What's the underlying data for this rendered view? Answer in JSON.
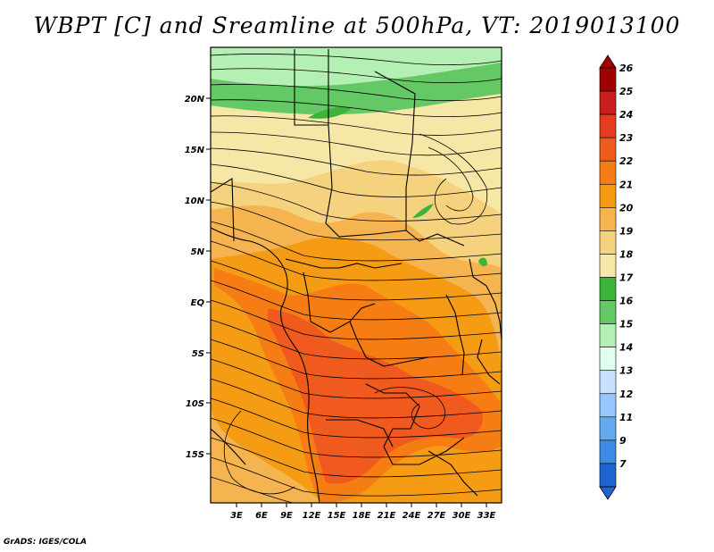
{
  "title": "WBPT [C] and Sreamline at 500hPa, VT: 2019013100",
  "footer": "GrADS: IGES/COLA",
  "lat_labels": [
    "20N",
    "15N",
    "10N",
    "5N",
    "EQ",
    "5S",
    "10S",
    "15S"
  ],
  "lon_labels": [
    "3E",
    "6E",
    "9E",
    "12E",
    "15E",
    "18E",
    "21E",
    "24E",
    "27E",
    "30E",
    "33E"
  ],
  "colorbar": {
    "labels": [
      "26",
      "25",
      "24",
      "23",
      "22",
      "21",
      "20",
      "19",
      "18",
      "17",
      "16",
      "15",
      "14",
      "13",
      "12",
      "11",
      "9",
      "7"
    ],
    "colors": [
      "#a00000",
      "#c81e1e",
      "#e63c1e",
      "#f05a1e",
      "#f57d14",
      "#f59b14",
      "#f5b450",
      "#f5d27d",
      "#f7e7a6",
      "#3cb43c",
      "#64c864",
      "#b4f0b4",
      "#e1fff0",
      "#c8e1ff",
      "#96c8ff",
      "#64aaf0",
      "#3c8ce6",
      "#1e64d2"
    ]
  }
}
